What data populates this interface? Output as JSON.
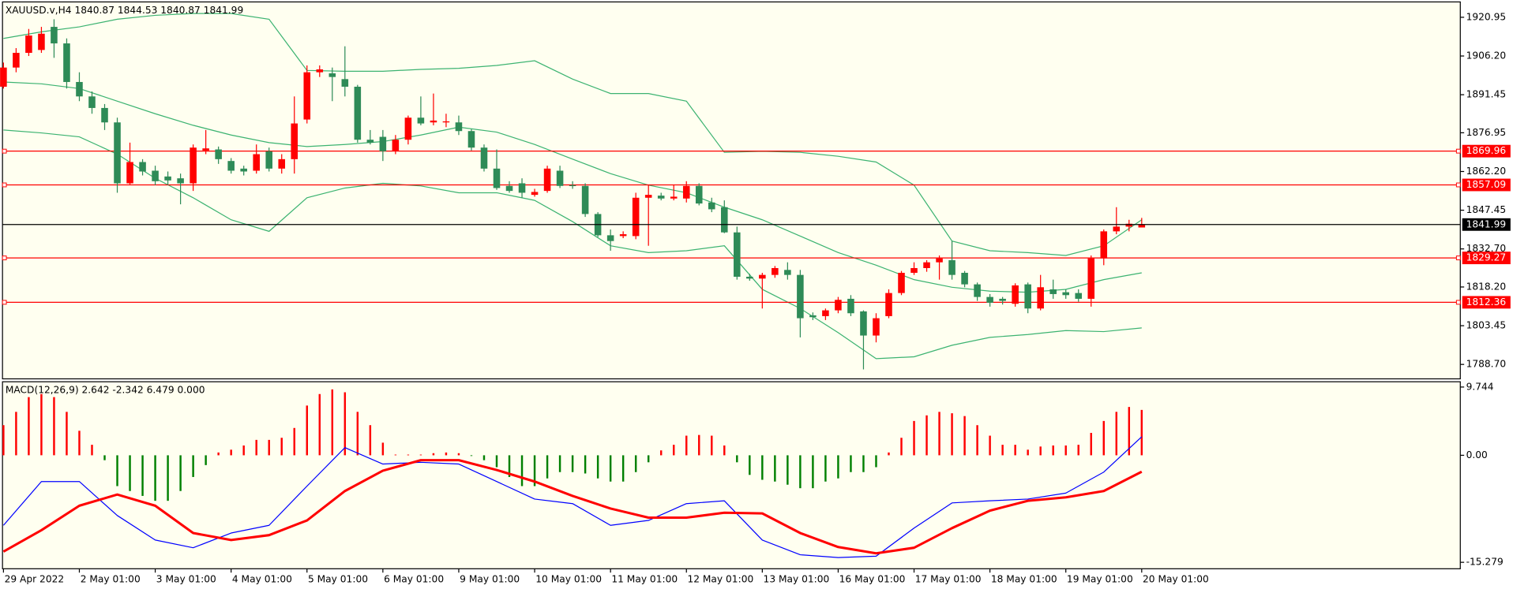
{
  "chart_data": [
    {
      "type": "candlestick",
      "title": "XAUUSD.v,H4 1840.87 1844.53 1840.87 1841.99",
      "categories": [
        "29 Apr 2022",
        null,
        null,
        null,
        null,
        null,
        "2 May 01:00",
        null,
        null,
        null,
        null,
        null,
        "3 May 01:00",
        null,
        null,
        null,
        null,
        null,
        "4 May 01:00",
        null,
        null,
        null,
        null,
        null,
        "5 May 01:00",
        null,
        null,
        null,
        null,
        null,
        "6 May 01:00",
        null,
        null,
        null,
        null,
        null,
        "9 May 01:00",
        null,
        null,
        null,
        null,
        null,
        "10 May 01:00",
        null,
        null,
        null,
        null,
        null,
        "11 May 01:00",
        null,
        null,
        null,
        null,
        null,
        "12 May 01:00",
        null,
        null,
        null,
        null,
        null,
        "13 May 01:00",
        null,
        null,
        null,
        null,
        null,
        "16 May 01:00",
        null,
        null,
        null,
        null,
        null,
        "17 May 01:00",
        null,
        null,
        null,
        null,
        null,
        "18 May 01:00",
        null,
        null,
        null,
        null,
        null,
        "19 May 01:00",
        null,
        null,
        null,
        null,
        null,
        "20 May 01:00"
      ],
      "ohlc": [
        [
          1894.5,
          1903.7,
          1893.8,
          1901.8
        ],
        [
          1901.8,
          1909.2,
          1900.0,
          1907.4
        ],
        [
          1907.4,
          1916.5,
          1906.2,
          1914.0
        ],
        [
          1908.5,
          1917.3,
          1907.4,
          1914.7
        ],
        [
          1917.3,
          1920.2,
          1905.5,
          1911.0
        ],
        [
          1911.0,
          1912.9,
          1893.8,
          1896.3
        ],
        [
          1896.3,
          1900.0,
          1889.0,
          1890.8
        ],
        [
          1890.8,
          1892.7,
          1884.2,
          1886.4
        ],
        [
          1886.4,
          1887.9,
          1878.0,
          1880.9
        ],
        [
          1880.9,
          1882.7,
          1854.1,
          1857.7
        ],
        [
          1857.7,
          1873.2,
          1857.0,
          1865.8
        ],
        [
          1865.8,
          1866.9,
          1860.7,
          1862.2
        ],
        [
          1862.5,
          1864.4,
          1857.0,
          1858.5
        ],
        [
          1860.3,
          1862.2,
          1857.0,
          1858.8
        ],
        [
          1859.6,
          1861.4,
          1849.7,
          1857.7
        ],
        [
          1857.7,
          1872.5,
          1854.8,
          1871.3
        ],
        [
          1870.2,
          1878.0,
          1868.8,
          1871.0
        ],
        [
          1870.6,
          1871.7,
          1865.1,
          1866.9
        ],
        [
          1866.2,
          1867.3,
          1861.4,
          1862.5
        ],
        [
          1863.3,
          1864.4,
          1860.7,
          1862.2
        ],
        [
          1862.5,
          1872.5,
          1861.4,
          1868.8
        ],
        [
          1869.9,
          1871.3,
          1862.2,
          1863.3
        ],
        [
          1863.3,
          1868.8,
          1861.4,
          1866.9
        ],
        [
          1866.9,
          1890.8,
          1861.4,
          1880.5
        ],
        [
          1882.0,
          1902.6,
          1880.5,
          1900.0
        ],
        [
          1900.0,
          1902.6,
          1898.2,
          1901.1
        ],
        [
          1899.6,
          1901.8,
          1889.0,
          1898.2
        ],
        [
          1897.4,
          1909.9,
          1890.8,
          1894.5
        ],
        [
          1894.5,
          1895.2,
          1873.2,
          1874.3
        ],
        [
          1874.3,
          1878.0,
          1872.5,
          1873.2
        ],
        [
          1875.4,
          1878.0,
          1866.2,
          1869.9
        ],
        [
          1869.9,
          1876.1,
          1868.8,
          1874.3
        ],
        [
          1874.3,
          1883.5,
          1872.5,
          1882.7
        ],
        [
          1882.7,
          1890.8,
          1879.8,
          1880.5
        ],
        [
          1880.9,
          1891.9,
          1879.8,
          1881.6
        ],
        [
          1880.9,
          1884.2,
          1879.1,
          1881.3
        ],
        [
          1880.9,
          1883.5,
          1876.1,
          1877.6
        ],
        [
          1877.6,
          1878.3,
          1870.2,
          1871.3
        ],
        [
          1871.3,
          1872.5,
          1862.2,
          1863.3
        ],
        [
          1863.3,
          1870.6,
          1855.2,
          1855.9
        ],
        [
          1856.7,
          1858.5,
          1854.1,
          1854.8
        ],
        [
          1857.7,
          1859.6,
          1852.2,
          1854.1
        ],
        [
          1853.3,
          1855.6,
          1852.6,
          1854.4
        ],
        [
          1854.8,
          1864.4,
          1854.1,
          1863.3
        ],
        [
          1862.5,
          1864.4,
          1855.9,
          1856.7
        ],
        [
          1857.0,
          1858.5,
          1855.6,
          1856.7
        ],
        [
          1856.7,
          1857.7,
          1844.9,
          1846.0
        ],
        [
          1846.0,
          1846.7,
          1837.2,
          1837.9
        ],
        [
          1837.9,
          1840.1,
          1832.0,
          1835.7
        ],
        [
          1837.6,
          1839.4,
          1836.8,
          1838.3
        ],
        [
          1837.6,
          1854.1,
          1836.4,
          1852.2
        ],
        [
          1852.2,
          1857.0,
          1833.9,
          1853.3
        ],
        [
          1853.0,
          1854.1,
          1851.2,
          1851.9
        ],
        [
          1851.9,
          1857.0,
          1851.2,
          1852.6
        ],
        [
          1851.9,
          1858.5,
          1850.4,
          1856.7
        ],
        [
          1856.7,
          1857.7,
          1849.3,
          1850.0
        ],
        [
          1850.4,
          1852.2,
          1846.7,
          1847.8
        ],
        [
          1848.6,
          1851.2,
          1838.7,
          1839.0
        ],
        [
          1839.0,
          1841.2,
          1821.0,
          1822.1
        ],
        [
          1822.1,
          1823.2,
          1820.6,
          1821.4
        ],
        [
          1821.4,
          1823.6,
          1810.0,
          1822.8
        ],
        [
          1822.8,
          1826.2,
          1821.7,
          1825.4
        ],
        [
          1824.7,
          1827.6,
          1821.0,
          1822.8
        ],
        [
          1822.8,
          1824.7,
          1799.0,
          1806.3
        ],
        [
          1807.4,
          1808.5,
          1805.6,
          1806.7
        ],
        [
          1807.1,
          1810.0,
          1805.6,
          1809.3
        ],
        [
          1809.3,
          1814.4,
          1808.2,
          1813.3
        ],
        [
          1813.7,
          1815.1,
          1807.1,
          1808.2
        ],
        [
          1808.9,
          1809.3,
          1786.8,
          1799.7
        ],
        [
          1799.7,
          1808.2,
          1797.1,
          1806.3
        ],
        [
          1807.1,
          1817.3,
          1806.3,
          1815.9
        ],
        [
          1815.9,
          1824.3,
          1815.1,
          1823.6
        ],
        [
          1823.6,
          1827.6,
          1822.8,
          1825.4
        ],
        [
          1825.4,
          1828.4,
          1824.0,
          1827.6
        ],
        [
          1827.6,
          1830.2,
          1821.0,
          1829.1
        ],
        [
          1828.4,
          1835.7,
          1821.0,
          1822.8
        ],
        [
          1823.6,
          1824.3,
          1818.1,
          1819.2
        ],
        [
          1819.2,
          1819.9,
          1812.9,
          1814.4
        ],
        [
          1814.4,
          1815.5,
          1810.7,
          1812.2
        ],
        [
          1813.7,
          1814.4,
          1811.5,
          1812.9
        ],
        [
          1811.8,
          1819.6,
          1810.7,
          1818.8
        ],
        [
          1819.2,
          1819.9,
          1808.2,
          1810.0
        ],
        [
          1810.0,
          1822.8,
          1809.3,
          1818.1
        ],
        [
          1817.3,
          1821.0,
          1813.7,
          1815.5
        ],
        [
          1816.2,
          1817.3,
          1813.7,
          1815.1
        ],
        [
          1815.9,
          1817.3,
          1812.6,
          1813.7
        ],
        [
          1813.7,
          1830.2,
          1810.7,
          1829.1
        ],
        [
          1829.1,
          1840.1,
          1826.5,
          1839.4
        ],
        [
          1839.4,
          1848.6,
          1838.3,
          1841.2
        ],
        [
          1841.2,
          1843.8,
          1839.4,
          1842.3
        ],
        [
          1840.87,
          1844.53,
          1840.87,
          1841.99
        ]
      ],
      "up_color": "#ff0000",
      "down_color": "#2e8b57",
      "bands": {
        "color": "#3cb371",
        "x": [
          0,
          3,
          6,
          9,
          12,
          15,
          18,
          21,
          24,
          27,
          30,
          33,
          36,
          39,
          42,
          45,
          48,
          51,
          54,
          57,
          60,
          63,
          66,
          69,
          72,
          75,
          78,
          81,
          84,
          87,
          90
        ],
        "series": [
          {
            "values": [
              1912.9,
              1915.4,
              1917.3,
              1920.2,
              1921.7,
              1922.4,
              1922.4,
              1920.2,
              1900.7,
              1900.4,
              1900.4,
              1901.1,
              1901.5,
              1902.6,
              1904.4,
              1897.4,
              1891.9,
              1891.9,
              1889.0,
              1869.5,
              1869.9,
              1869.5,
              1868.0,
              1865.8,
              1857.0,
              1835.7,
              1832.0,
              1831.3,
              1830.2,
              1833.9,
              1843.8
            ]
          },
          {
            "values": [
              1896.3,
              1895.6,
              1893.8,
              1889.0,
              1884.2,
              1879.8,
              1876.1,
              1873.2,
              1871.7,
              1872.5,
              1873.6,
              1876.1,
              1879.1,
              1877.2,
              1872.5,
              1866.9,
              1861.4,
              1857.0,
              1854.1,
              1848.6,
              1843.8,
              1837.6,
              1831.3,
              1826.5,
              1821.0,
              1818.1,
              1816.6,
              1816.2,
              1817.3,
              1821.0,
              1823.6
            ]
          },
          {
            "values": [
              1878.0,
              1876.9,
              1875.4,
              1868.8,
              1859.6,
              1852.2,
              1843.8,
              1839.4,
              1852.2,
              1855.9,
              1857.7,
              1856.7,
              1854.1,
              1854.1,
              1851.2,
              1843.1,
              1833.9,
              1831.3,
              1832.0,
              1833.9,
              1817.3,
              1810.0,
              1800.8,
              1790.9,
              1791.6,
              1796.0,
              1799.0,
              1800.1,
              1801.6,
              1801.2,
              1802.6
            ]
          }
        ]
      },
      "levels": [
        1869.96,
        1857.09,
        1829.27,
        1812.36
      ],
      "level_color": "#ff0000",
      "bid": 1841.99,
      "bid_color": "#000000",
      "ylim": [
        1783.2,
        1926.8
      ],
      "yticks": [
        1920.95,
        {
          "value": 1906.2,
          "label": "1906.20"
        },
        1891.45,
        1876.95,
        {
          "value": 1862.2,
          "label": "1862.20"
        },
        1847.45,
        {
          "value": 1832.7,
          "label": "1832.70"
        },
        {
          "value": 1818.2,
          "label": "1818.20"
        },
        1803.45,
        {
          "value": 1788.7,
          "label": "1788.70"
        }
      ]
    },
    {
      "type": "macd",
      "title": "MACD(12,26,9) 2.642 -2.342 6.479 0.000",
      "histogram": {
        "up_color": "#ff0000",
        "down_color": "#008000",
        "values": [
          4.3,
          6.2,
          8.3,
          8.75,
          8.3,
          6.2,
          3.5,
          1.5,
          -0.7,
          -4.4,
          -5.1,
          -5.8,
          -6.5,
          -6.5,
          -5.1,
          -3.1,
          -1.4,
          0.4,
          0.8,
          1.4,
          2.2,
          2.2,
          2.5,
          3.9,
          7.1,
          8.75,
          9.4,
          9.0,
          6.2,
          4.3,
          1.8,
          0.1,
          0.1,
          0.1,
          0.3,
          0.4,
          0.3,
          -0.1,
          -0.7,
          -1.7,
          -3.1,
          -4.4,
          -4.4,
          -3.3,
          -2.4,
          -2.4,
          -2.6,
          -3.3,
          -3.75,
          -3.75,
          -2.4,
          -1.0,
          0.7,
          1.5,
          2.8,
          2.9,
          2.8,
          1.4,
          -1.0,
          -2.8,
          -3.5,
          -3.75,
          -4.2,
          -4.7,
          -4.7,
          -3.75,
          -3.3,
          -2.4,
          -2.4,
          -1.7,
          0.4,
          2.5,
          4.9,
          5.7,
          6.2,
          6.0,
          5.6,
          4.3,
          2.8,
          1.5,
          1.5,
          0.8,
          1.25,
          1.4,
          1.4,
          1.5,
          3.2,
          4.9,
          6.2,
          6.9,
          6.479
        ]
      },
      "x": [
        0,
        3,
        6,
        9,
        12,
        15,
        18,
        21,
        24,
        27,
        30,
        33,
        36,
        39,
        42,
        45,
        48,
        51,
        54,
        57,
        60,
        63,
        66,
        69,
        72,
        75,
        78,
        81,
        84,
        87,
        90
      ],
      "series": [
        {
          "color": "#0000ff",
          "width": 1,
          "values": [
            -10.0,
            -3.75,
            -3.75,
            -8.6,
            -12.1,
            -13.2,
            -11.1,
            -10.0,
            -4.4,
            1.1,
            -1.25,
            -1.0,
            -1.25,
            -3.75,
            -6.25,
            -6.9,
            -10.0,
            -9.3,
            -6.9,
            -6.5,
            -12.1,
            -14.2,
            -14.6,
            -14.4,
            -10.4,
            -6.8,
            -6.5,
            -6.25,
            -5.4,
            -2.4,
            2.642
          ]
        },
        {
          "color": "#ff0000",
          "width": 2.5,
          "values": [
            -13.75,
            -10.7,
            -7.2,
            -5.6,
            -7.2,
            -11.1,
            -12.1,
            -11.4,
            -9.3,
            -5.1,
            -2.2,
            -0.7,
            -0.7,
            -2.1,
            -3.75,
            -5.8,
            -7.6,
            -8.9,
            -8.9,
            -8.2,
            -8.3,
            -11.1,
            -13.1,
            -14.0,
            -13.2,
            -10.4,
            -7.9,
            -6.5,
            -6.0,
            -5.1,
            -2.342
          ]
        }
      ],
      "ylim": [
        -16.2,
        10.5
      ],
      "yticks": [
        9.744,
        {
          "value": 0,
          "label": "0.00"
        },
        -15.279
      ]
    }
  ]
}
